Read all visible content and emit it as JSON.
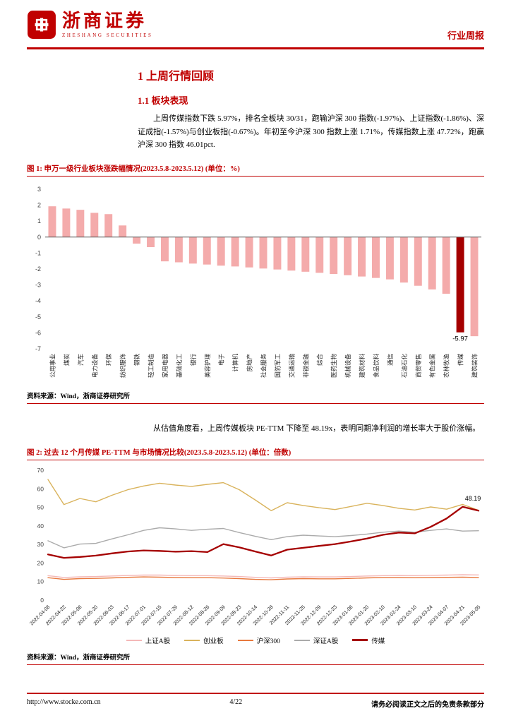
{
  "header": {
    "logo_title": "浙商证券",
    "logo_subtitle": "ZHESHANG SECURITIES",
    "report_type": "行业周报"
  },
  "section": {
    "h1": "1 上周行情回顾",
    "h2": "1.1 板块表现",
    "para1": "上周传媒指数下跌 5.97%，排名全板块 30/31，跑输沪深 300 指数(-1.97%)、上证指数(-1.86%)、深证成指(-1.57%)与创业板指(-0.67%)。年初至今沪深 300 指数上涨 1.71%，传媒指数上涨 47.72%，跑赢沪深 300 指数 46.01pct.",
    "para2": "从估值角度看，上周传媒板块 PE-TTM 下降至 48.19x，表明同期净利润的增长率大于股价涨幅。"
  },
  "figure1": {
    "caption": "图 1:  申万一级行业板块涨跌幅情况(2023.5.8-2023.5.12) (单位：%)",
    "source": "资料来源：Wind，浙商证券研究所"
  },
  "figure2": {
    "caption": "图 2:  过去 12 个月传媒 PE-TTM 与市场情况比较(2023.5.8-2023.5.12) (单位：倍数)",
    "source": "资料来源：Wind，浙商证券研究所"
  },
  "footer": {
    "url": "http://www.stocke.com.cn",
    "page": "4/22",
    "disclaimer": "请务必阅读正文之后的免责条款部分"
  },
  "chart_data": [
    {
      "type": "bar",
      "title": "申万一级行业板块涨跌幅情况(2023.5.8-2023.5.12)",
      "unit": "%",
      "ylim": [
        -7,
        3
      ],
      "ytick_step": 1,
      "grid": false,
      "bar_color": "#F4ABAB",
      "highlight_color": "#A50000",
      "highlight_category": "传媒",
      "highlight_value_label": "-5.97",
      "categories": [
        "公用事业",
        "煤炭",
        "汽车",
        "电力设备",
        "环保",
        "纺织服饰",
        "钢铁",
        "轻工制造",
        "家用电器",
        "基础化工",
        "银行",
        "美容护理",
        "电子",
        "计算机",
        "房地产",
        "社会服务",
        "国防军工",
        "交通运输",
        "非银金融",
        "综合",
        "医药生物",
        "机械设备",
        "建筑材料",
        "食品饮料",
        "通信",
        "石油石化",
        "商贸零售",
        "有色金属",
        "农林牧渔",
        "传媒",
        "建筑装饰"
      ],
      "values": [
        1.93,
        1.79,
        1.71,
        1.52,
        1.44,
        0.73,
        -0.41,
        -0.63,
        -1.52,
        -1.58,
        -1.66,
        -1.72,
        -1.79,
        -1.84,
        -1.9,
        -1.97,
        -2.03,
        -2.1,
        -2.17,
        -2.24,
        -2.31,
        -2.39,
        -2.47,
        -2.56,
        -2.65,
        -2.85,
        -3.05,
        -3.28,
        -3.55,
        -5.97,
        -6.21
      ]
    },
    {
      "type": "line",
      "title": "过去 12 个月传媒 PE-TTM 与市场情况比较(2023.5.8-2023.5.12)",
      "unit": "倍数",
      "ylim": [
        0,
        70
      ],
      "ytick_step": 10,
      "grid": false,
      "legend_position": "bottom",
      "annotation": {
        "text": "48.19",
        "series": "传媒"
      },
      "x": [
        "2022-04-08",
        "2022-04-22",
        "2022-05-06",
        "2022-05-20",
        "2022-06-03",
        "2022-06-17",
        "2022-07-01",
        "2022-07-15",
        "2022-07-29",
        "2022-08-12",
        "2022-08-26",
        "2022-09-09",
        "2022-09-23",
        "2022-10-14",
        "2022-10-28",
        "2022-11-11",
        "2022-11-25",
        "2022-12-09",
        "2022-12-23",
        "2023-01-06",
        "2023-01-20",
        "2023-02-10",
        "2023-02-24",
        "2023-03-10",
        "2023-03-24",
        "2023-04-07",
        "2023-04-21",
        "2023-05-05"
      ],
      "series": [
        {
          "name": "上证A股",
          "color": "#F4B8B8",
          "width": 1.4,
          "values": [
            13.2,
            12.2,
            12.6,
            12.7,
            13.0,
            13.3,
            13.5,
            13.5,
            13.3,
            13.2,
            13.2,
            13.0,
            12.7,
            12.3,
            12.0,
            12.4,
            12.6,
            12.5,
            12.5,
            12.7,
            13.0,
            13.2,
            13.3,
            13.2,
            13.4,
            13.5,
            13.7,
            13.6
          ]
        },
        {
          "name": "创业板",
          "color": "#D9B35C",
          "width": 1.4,
          "values": [
            65.0,
            51.5,
            54.8,
            53.0,
            56.5,
            59.5,
            61.5,
            63.0,
            62.0,
            61.3,
            62.4,
            63.3,
            59.5,
            54.0,
            48.2,
            52.5,
            51.0,
            49.8,
            48.8,
            50.5,
            52.2,
            51.0,
            49.5,
            48.6,
            50.2,
            49.0,
            51.6,
            48.4
          ]
        },
        {
          "name": "沪深300",
          "color": "#E8793E",
          "width": 1.4,
          "values": [
            12.1,
            11.2,
            11.6,
            11.7,
            12.0,
            12.3,
            12.5,
            12.4,
            12.2,
            12.1,
            12.1,
            11.9,
            11.6,
            11.2,
            11.0,
            11.4,
            11.6,
            11.5,
            11.5,
            11.7,
            12.0,
            12.2,
            12.2,
            12.1,
            12.2,
            12.3,
            12.4,
            12.2
          ]
        },
        {
          "name": "深证A股",
          "color": "#ABABAB",
          "width": 1.4,
          "values": [
            32.0,
            28.2,
            30.2,
            30.6,
            33.0,
            35.2,
            37.6,
            39.0,
            38.4,
            37.6,
            38.2,
            38.6,
            36.4,
            34.4,
            32.6,
            34.2,
            35.0,
            34.6,
            34.2,
            34.8,
            35.6,
            36.6,
            37.2,
            36.6,
            37.6,
            38.4,
            37.2,
            37.4
          ]
        },
        {
          "name": "传媒",
          "color": "#A50000",
          "width": 2.3,
          "values": [
            24.6,
            22.8,
            23.3,
            24.0,
            25.2,
            26.2,
            26.8,
            26.5,
            26.1,
            26.4,
            25.9,
            30.2,
            28.4,
            26.2,
            24.1,
            27.2,
            28.2,
            29.2,
            30.2,
            31.6,
            33.2,
            35.2,
            36.4,
            36.0,
            39.5,
            44.0,
            50.3,
            48.19
          ]
        }
      ]
    }
  ]
}
